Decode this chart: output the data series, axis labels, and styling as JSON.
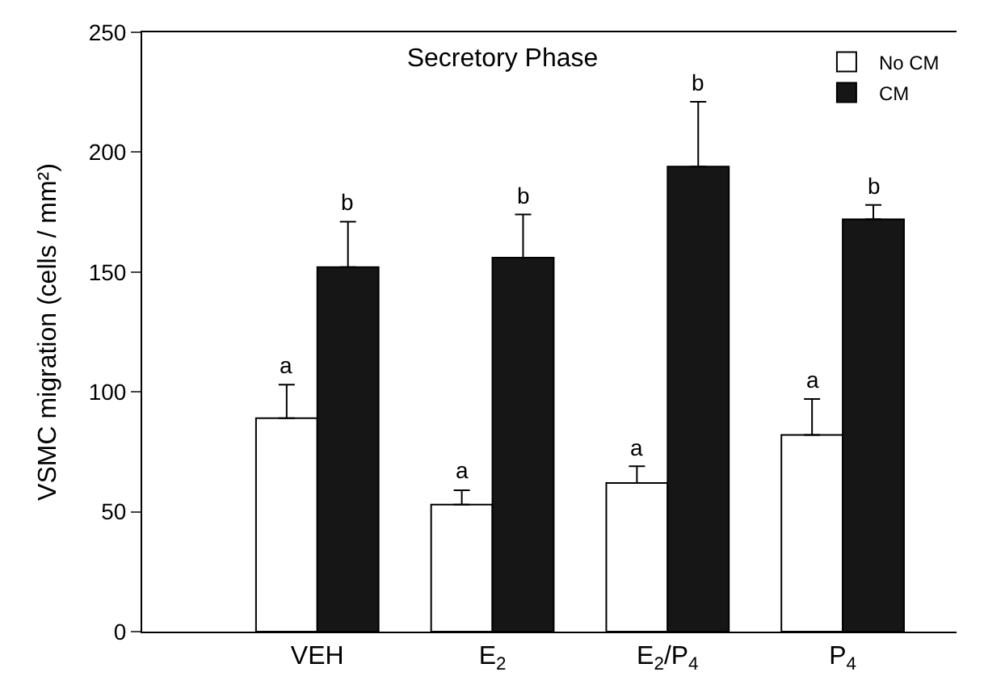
{
  "chart_data": {
    "type": "bar",
    "title": "Secretory Phase",
    "ylabel": "VSMC migration (cells / mm²)",
    "categories": [
      "VEH",
      "E$_{2}$",
      "E$_{2}$/P$_{4}$",
      "P$_{4}$"
    ],
    "series": [
      {
        "name": "No CM",
        "color": "#ffffff",
        "values": [
          89,
          53,
          62,
          82
        ],
        "errors": [
          [
            89,
            103
          ],
          [
            53,
            59
          ],
          [
            62,
            69
          ],
          [
            82,
            97
          ]
        ],
        "value_labels": [
          "a",
          "a",
          "a",
          "a"
        ]
      },
      {
        "name": "CM",
        "color": "#161616",
        "values": [
          152,
          156,
          194,
          172
        ],
        "errors": [
          [
            152,
            171
          ],
          [
            156,
            174
          ],
          [
            194,
            221
          ],
          [
            172,
            178
          ]
        ],
        "value_labels": [
          "b",
          "b",
          "b",
          "b"
        ]
      }
    ],
    "ylim": [
      0,
      250
    ],
    "yticks": [
      0,
      50,
      100,
      150,
      200,
      250
    ],
    "legend": "top right"
  }
}
